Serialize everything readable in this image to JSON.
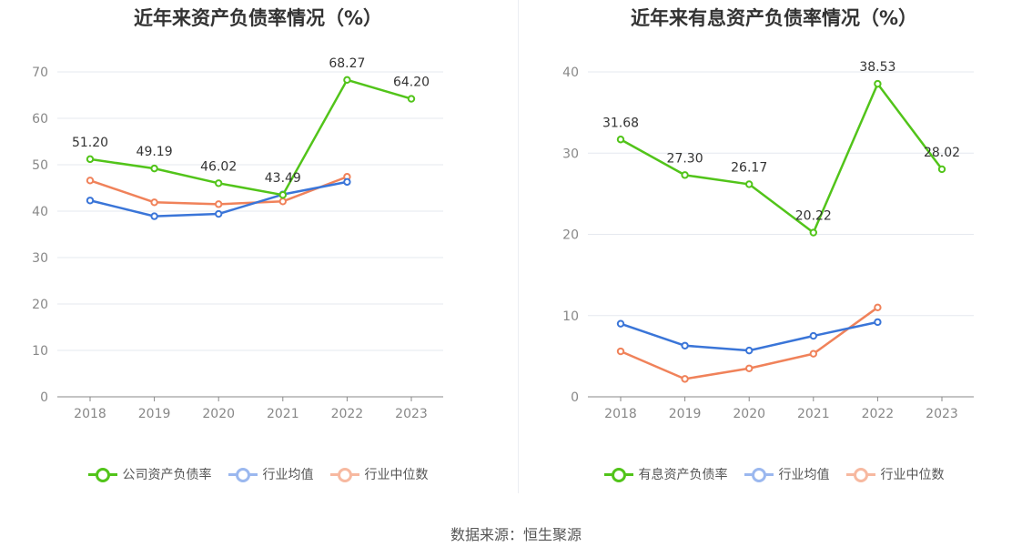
{
  "source": "数据来源：恒生聚源",
  "chart_data": [
    {
      "type": "line",
      "title": "近年来资产负债率情况（%）",
      "categories": [
        "2018",
        "2019",
        "2020",
        "2021",
        "2022",
        "2023"
      ],
      "ylim": [
        0,
        70
      ],
      "yticks": [
        0,
        10,
        20,
        30,
        40,
        50,
        60,
        70
      ],
      "grid": true,
      "legend_position": "bottom",
      "series": [
        {
          "name": "公司资产负债率",
          "color": "#52c41a",
          "values": [
            51.2,
            49.19,
            46.02,
            43.49,
            68.27,
            64.2
          ],
          "labels": [
            "51.20",
            "49.19",
            "46.02",
            "43.49",
            "68.27",
            "64.20"
          ]
        },
        {
          "name": "行业均值",
          "color": "#3a75d8",
          "values": [
            42.3,
            38.9,
            39.4,
            43.6,
            46.3,
            null
          ]
        },
        {
          "name": "行业中位数",
          "color": "#f0825a",
          "values": [
            46.6,
            41.9,
            41.5,
            42.1,
            47.4,
            null
          ]
        }
      ]
    },
    {
      "type": "line",
      "title": "近年来有息资产负债率情况（%）",
      "categories": [
        "2018",
        "2019",
        "2020",
        "2021",
        "2022",
        "2023"
      ],
      "ylim": [
        0,
        40
      ],
      "yticks": [
        0,
        10,
        20,
        30,
        40
      ],
      "grid": true,
      "legend_position": "bottom",
      "series": [
        {
          "name": "有息资产负债率",
          "color": "#52c41a",
          "values": [
            31.68,
            27.3,
            26.17,
            20.22,
            38.53,
            28.02
          ],
          "labels": [
            "31.68",
            "27.30",
            "26.17",
            "20.22",
            "38.53",
            "28.02"
          ]
        },
        {
          "name": "行业均值",
          "color": "#3a75d8",
          "values": [
            9.0,
            6.3,
            5.7,
            7.5,
            9.2,
            null
          ]
        },
        {
          "name": "行业中位数",
          "color": "#f0825a",
          "values": [
            5.6,
            2.2,
            3.5,
            5.3,
            11.0,
            null
          ]
        }
      ]
    }
  ]
}
